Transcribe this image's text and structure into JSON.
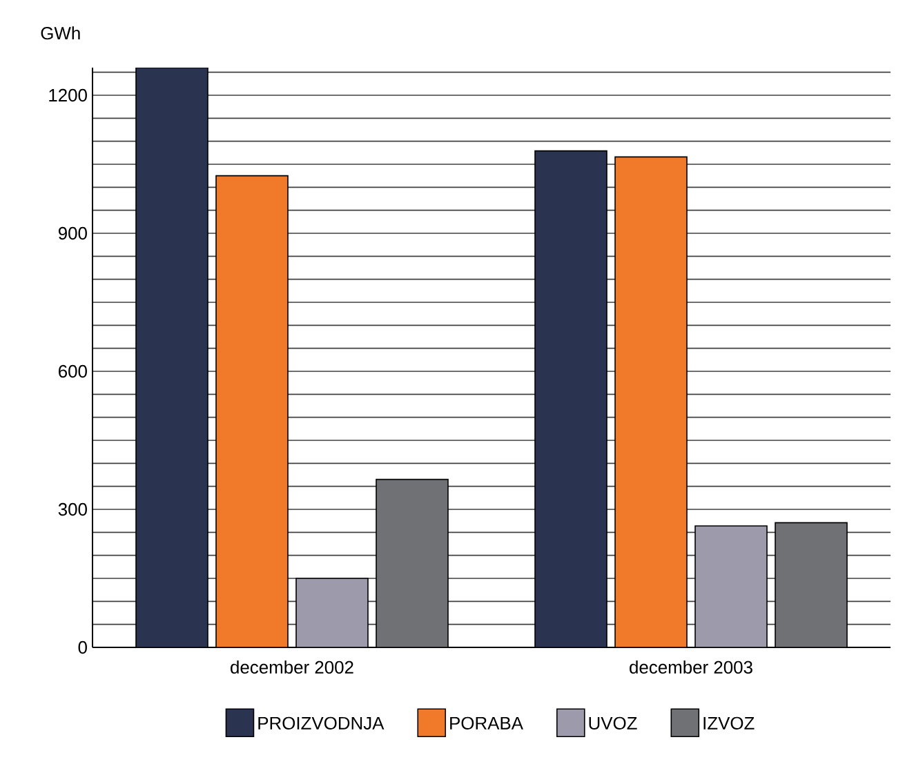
{
  "chart_data": {
    "type": "bar",
    "ylabel": "GWh",
    "categories": [
      "december 2002",
      "december 2003"
    ],
    "series": [
      {
        "name": "PROIZVODNJA",
        "color": "#2a3450",
        "values": [
          1260,
          1079
        ]
      },
      {
        "name": "PORABA",
        "color": "#f07a2a",
        "values": [
          1025,
          1066
        ]
      },
      {
        "name": "UVOZ",
        "color": "#9d9aab",
        "values": [
          150,
          264
        ]
      },
      {
        "name": "IZVOZ",
        "color": "#707174",
        "values": [
          365,
          271
        ]
      }
    ],
    "ylim": [
      0,
      1260
    ],
    "yticks": [
      0,
      {
        "value": 50,
        "label": null
      },
      {
        "value": 100,
        "label": null
      },
      {
        "value": 150,
        "label": null
      },
      {
        "value": 200,
        "label": null
      },
      {
        "value": 250,
        "label": null
      },
      300,
      {
        "value": 350,
        "label": null
      },
      {
        "value": 400,
        "label": null
      },
      {
        "value": 450,
        "label": null
      },
      {
        "value": 500,
        "label": null
      },
      {
        "value": 550,
        "label": null
      },
      600,
      {
        "value": 650,
        "label": null
      },
      {
        "value": 700,
        "label": null
      },
      {
        "value": 750,
        "label": null
      },
      {
        "value": 800,
        "label": null
      },
      {
        "value": 850,
        "label": null
      },
      900,
      {
        "value": 950,
        "label": null
      },
      {
        "value": 1000,
        "label": null
      },
      {
        "value": 1050,
        "label": null
      },
      {
        "value": 1100,
        "label": null
      },
      {
        "value": 1150,
        "label": null
      },
      1200,
      {
        "value": 1250,
        "label": null
      }
    ],
    "grid": "y",
    "legend": "bottom"
  }
}
